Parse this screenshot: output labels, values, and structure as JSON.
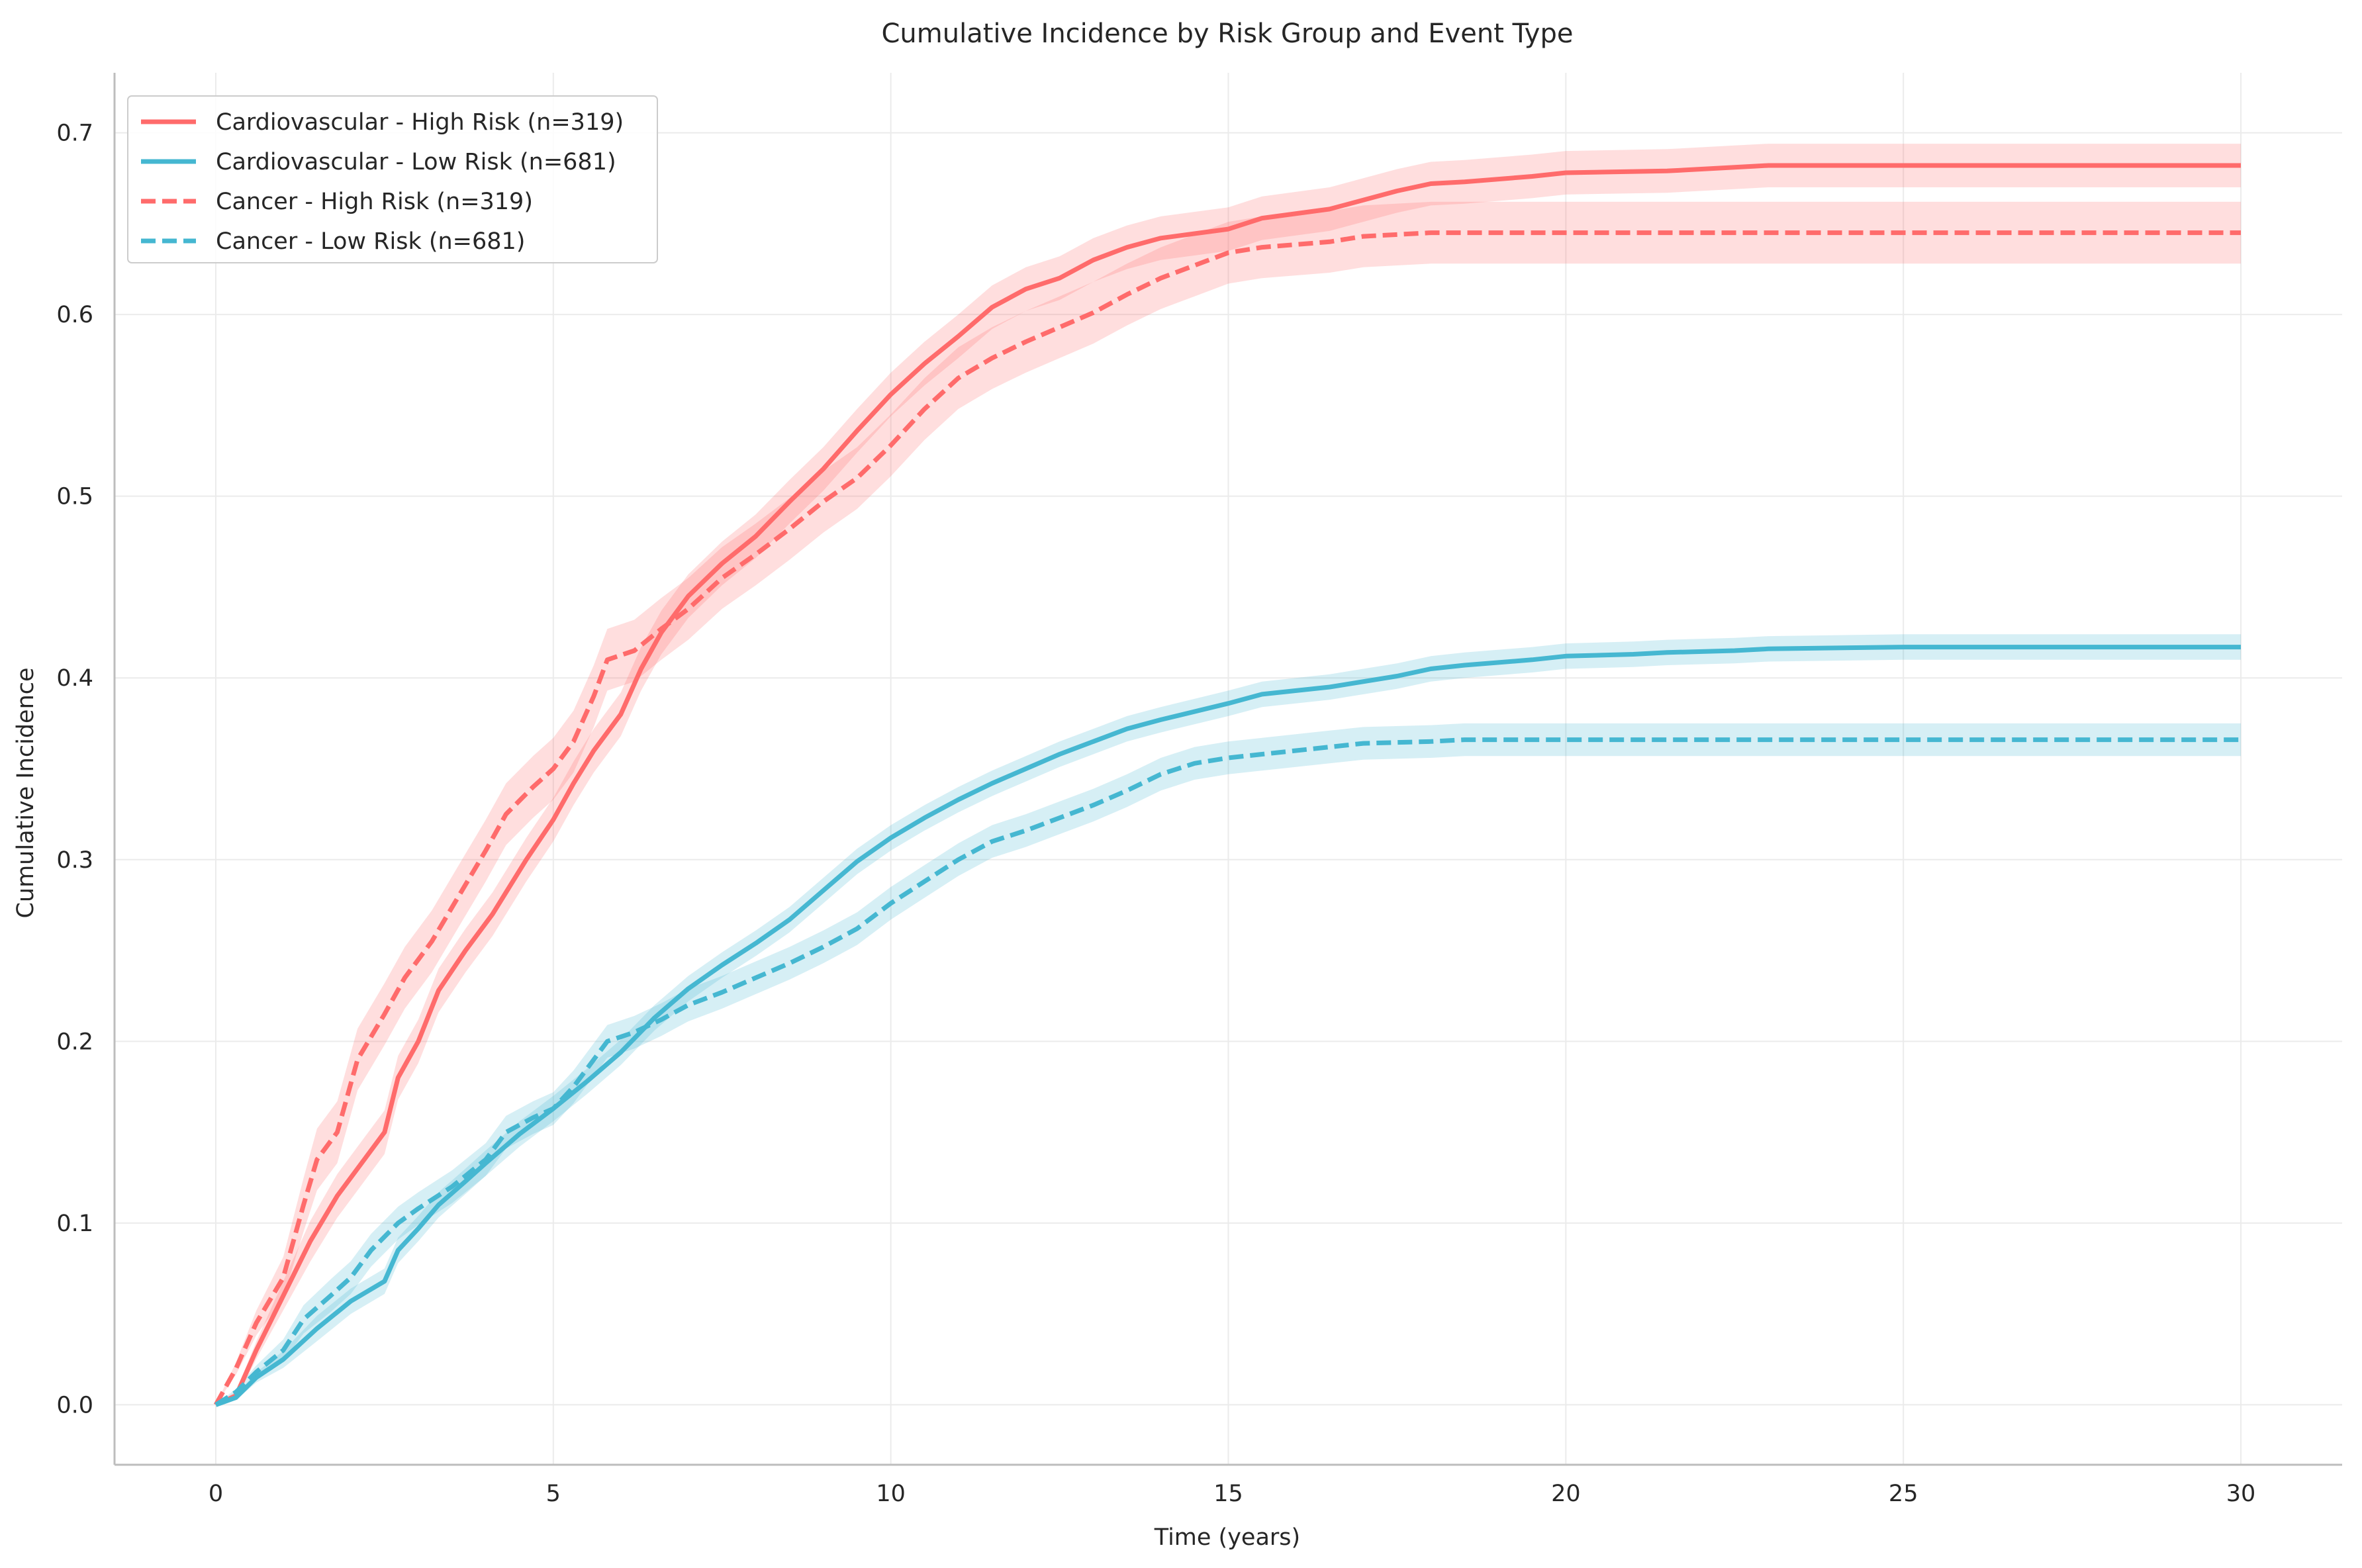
{
  "chart_data": {
    "type": "line",
    "title": "Cumulative Incidence by Risk Group and Event Type",
    "xlabel": "Time (years)",
    "ylabel": "Cumulative Incidence",
    "xlim": [
      -1.5,
      31.5
    ],
    "ylim": [
      -0.033,
      0.733
    ],
    "x_ticks": [
      0,
      5,
      10,
      15,
      20,
      25,
      30
    ],
    "x_tick_labels": [
      "0",
      "5",
      "10",
      "15",
      "20",
      "25",
      "30"
    ],
    "y_ticks": [
      0.0,
      0.1,
      0.2,
      0.3,
      0.4,
      0.5,
      0.6,
      0.7
    ],
    "y_tick_labels": [
      "0.0",
      "0.1",
      "0.2",
      "0.3",
      "0.4",
      "0.5",
      "0.6",
      "0.7"
    ],
    "grid": true,
    "legend_position": "top-left",
    "series": [
      {
        "name": "Cardiovascular - High Risk (n=319)",
        "color": "#ff6b6b",
        "line_style": "solid",
        "x": [
          0,
          0.3,
          0.6,
          1.0,
          1.4,
          1.8,
          2.2,
          2.5,
          2.7,
          3.0,
          3.3,
          3.7,
          4.1,
          4.6,
          5.0,
          5.3,
          5.6,
          6.0,
          6.3,
          6.6,
          7.0,
          7.5,
          8.0,
          8.5,
          9.0,
          9.5,
          10.0,
          10.5,
          11.0,
          11.5,
          12.0,
          12.5,
          13.0,
          13.5,
          14.0,
          15.0,
          15.5,
          16.5,
          17.5,
          18.0,
          18.5,
          19.5,
          20.0,
          21.5,
          22.5,
          23.0,
          25.0,
          30.0
        ],
        "y": [
          0,
          0.005,
          0.03,
          0.06,
          0.09,
          0.115,
          0.135,
          0.15,
          0.18,
          0.2,
          0.228,
          0.25,
          0.27,
          0.3,
          0.322,
          0.342,
          0.36,
          0.38,
          0.405,
          0.425,
          0.445,
          0.463,
          0.478,
          0.497,
          0.515,
          0.536,
          0.556,
          0.573,
          0.588,
          0.604,
          0.614,
          0.62,
          0.63,
          0.637,
          0.642,
          0.647,
          0.653,
          0.658,
          0.668,
          0.672,
          0.673,
          0.676,
          0.678,
          0.679,
          0.681,
          0.682,
          0.682,
          0.682
        ],
        "ci_halfwidth": 0.012
      },
      {
        "name": "Cardiovascular - Low Risk (n=681)",
        "color": "#45b7d1",
        "line_style": "solid",
        "x": [
          0,
          0.3,
          0.6,
          1.0,
          1.5,
          2.0,
          2.5,
          2.7,
          3.0,
          3.3,
          3.7,
          4.0,
          4.5,
          5.0,
          5.5,
          6.0,
          6.5,
          7.0,
          7.5,
          8.0,
          8.5,
          9.0,
          9.5,
          10.0,
          10.5,
          11.0,
          11.5,
          12.0,
          12.5,
          13.0,
          13.5,
          14.0,
          15.0,
          15.5,
          16.5,
          17.5,
          18.0,
          18.5,
          19.5,
          20.0,
          21.0,
          21.5,
          22.5,
          23.0,
          25.0,
          30.0
        ],
        "y": [
          0,
          0.004,
          0.015,
          0.025,
          0.042,
          0.057,
          0.068,
          0.085,
          0.097,
          0.11,
          0.123,
          0.133,
          0.149,
          0.163,
          0.178,
          0.194,
          0.213,
          0.229,
          0.242,
          0.254,
          0.267,
          0.283,
          0.299,
          0.312,
          0.323,
          0.333,
          0.342,
          0.35,
          0.358,
          0.365,
          0.372,
          0.377,
          0.386,
          0.391,
          0.395,
          0.401,
          0.405,
          0.407,
          0.41,
          0.412,
          0.413,
          0.414,
          0.415,
          0.416,
          0.417,
          0.417
        ],
        "ci_halfwidth": 0.007
      },
      {
        "name": "Cancer - High Risk (n=319)",
        "color": "#ff6b6b",
        "line_style": "dashed",
        "x": [
          0,
          0.3,
          0.6,
          1.0,
          1.3,
          1.5,
          1.8,
          2.1,
          2.5,
          2.8,
          3.2,
          3.6,
          4.0,
          4.3,
          4.7,
          5.0,
          5.3,
          5.6,
          5.8,
          6.2,
          6.6,
          7.0,
          7.5,
          8.0,
          8.5,
          9.0,
          9.5,
          10.0,
          10.5,
          11.0,
          11.5,
          12.0,
          12.5,
          13.0,
          13.5,
          14.0,
          14.5,
          15.0,
          15.5,
          16.5,
          17.0,
          18.0,
          18.5,
          20.0,
          30.0
        ],
        "y": [
          0,
          0.02,
          0.045,
          0.07,
          0.11,
          0.135,
          0.15,
          0.19,
          0.215,
          0.235,
          0.255,
          0.28,
          0.305,
          0.325,
          0.34,
          0.35,
          0.365,
          0.39,
          0.41,
          0.415,
          0.427,
          0.438,
          0.455,
          0.468,
          0.482,
          0.497,
          0.51,
          0.528,
          0.548,
          0.565,
          0.576,
          0.585,
          0.593,
          0.601,
          0.611,
          0.62,
          0.627,
          0.634,
          0.637,
          0.64,
          0.643,
          0.645,
          0.645,
          0.645,
          0.645
        ],
        "ci_halfwidth": 0.017
      },
      {
        "name": "Cancer - Low Risk (n=681)",
        "color": "#45b7d1",
        "line_style": "dashed",
        "x": [
          0,
          0.3,
          0.6,
          1.0,
          1.3,
          1.7,
          2.0,
          2.3,
          2.7,
          3.0,
          3.5,
          4.0,
          4.3,
          4.7,
          5.0,
          5.3,
          5.6,
          5.8,
          6.2,
          6.6,
          7.0,
          7.5,
          8.0,
          8.5,
          9.0,
          9.5,
          10.0,
          10.5,
          11.0,
          11.5,
          12.0,
          12.5,
          13.0,
          13.5,
          14.0,
          14.5,
          15.0,
          15.5,
          16.5,
          17.0,
          18.0,
          18.5,
          20.0,
          30.0
        ],
        "y": [
          0,
          0.007,
          0.018,
          0.03,
          0.047,
          0.06,
          0.07,
          0.085,
          0.1,
          0.108,
          0.12,
          0.135,
          0.15,
          0.158,
          0.163,
          0.175,
          0.19,
          0.2,
          0.205,
          0.212,
          0.22,
          0.227,
          0.235,
          0.243,
          0.252,
          0.262,
          0.276,
          0.288,
          0.3,
          0.31,
          0.316,
          0.323,
          0.33,
          0.338,
          0.347,
          0.353,
          0.356,
          0.358,
          0.362,
          0.364,
          0.365,
          0.366,
          0.366,
          0.366
        ],
        "ci_halfwidth": 0.009
      }
    ]
  }
}
